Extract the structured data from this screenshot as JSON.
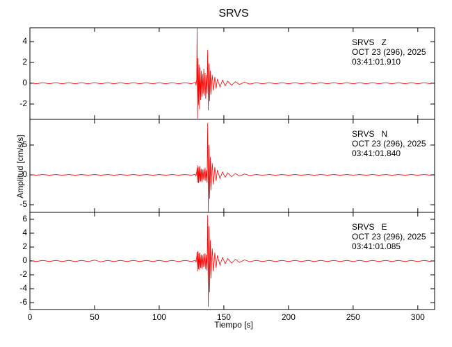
{
  "chart_data": [
    {
      "type": "line",
      "title": "SRVS",
      "annotation": [
        "SRVS   Z",
        "OCT 23 (296), 2025",
        "03:41:01.910"
      ],
      "color": "#ff0000",
      "xlim": [
        0,
        313
      ],
      "ylim": [
        -3.47,
        5.33
      ],
      "yticks": [
        -2,
        0,
        2,
        4
      ],
      "x": [
        0,
        5,
        10,
        15,
        20,
        25,
        30,
        35,
        40,
        45,
        50,
        55,
        60,
        65,
        70,
        75,
        80,
        85,
        90,
        95,
        100,
        105,
        110,
        115,
        120,
        125,
        128,
        128.5,
        129,
        129.3,
        129.6,
        130,
        130.4,
        130.8,
        131.2,
        131.6,
        132,
        132.5,
        133,
        133.5,
        134,
        134.5,
        135,
        135.5,
        136,
        136.5,
        137,
        137.5,
        138,
        138.5,
        139,
        139.5,
        140,
        141,
        142,
        143,
        144,
        145,
        147,
        149,
        151,
        153,
        156,
        159,
        162,
        166,
        170,
        175,
        180,
        185,
        190,
        195,
        200,
        205,
        210,
        215,
        220,
        225,
        230,
        235,
        240,
        245,
        250,
        255,
        260,
        265,
        270,
        275,
        280,
        285,
        290,
        295,
        300,
        305,
        310
      ],
      "values": [
        0.05,
        -0.05,
        0.05,
        -0.05,
        0.05,
        -0.05,
        0.05,
        -0.05,
        0.05,
        -0.05,
        0.05,
        -0.05,
        0.05,
        -0.05,
        0.05,
        -0.05,
        0.05,
        -0.05,
        0.05,
        -0.05,
        0.05,
        -0.05,
        0.05,
        -0.05,
        0.05,
        -0.05,
        0.1,
        -0.2,
        0.4,
        5.3,
        -3.4,
        2.4,
        -2.1,
        1.8,
        -2.5,
        1.5,
        -1.6,
        1.2,
        -1.3,
        0.9,
        -1.0,
        1.4,
        -1.2,
        1.0,
        -1.5,
        0.8,
        -1.0,
        3.2,
        -2.6,
        1.9,
        -1.7,
        1.2,
        -1.1,
        0.8,
        -0.7,
        0.6,
        -0.5,
        0.4,
        -0.35,
        0.3,
        -0.25,
        0.2,
        -0.18,
        0.15,
        -0.12,
        0.1,
        -0.08,
        0.05,
        -0.05,
        0.05,
        -0.05,
        0.05,
        -0.05,
        0.05,
        -0.05,
        0.05,
        -0.05,
        0.05,
        -0.05,
        0.05,
        -0.05,
        0.05,
        -0.05,
        0.05,
        -0.05,
        0.05,
        -0.05,
        0.05,
        -0.05,
        0.05,
        -0.05,
        0.05,
        -0.05,
        0.05,
        -0.05
      ]
    },
    {
      "type": "line",
      "y_label": "Amplitud [cm/s/s]",
      "annotation": [
        "SRVS   N",
        "OCT 23 (296), 2025",
        "03:41:01.840"
      ],
      "color": "#ff0000",
      "xlim": [
        0,
        313
      ],
      "ylim": [
        -6.28,
        9.3
      ],
      "yticks": [
        -5,
        0,
        5
      ],
      "x": [
        0,
        5,
        10,
        15,
        20,
        25,
        30,
        35,
        40,
        45,
        50,
        55,
        60,
        65,
        70,
        75,
        80,
        85,
        90,
        95,
        100,
        105,
        110,
        115,
        120,
        125,
        128,
        128.5,
        129,
        129.3,
        129.6,
        130,
        130.4,
        130.8,
        131.2,
        131.6,
        132,
        132.5,
        133,
        133.5,
        134,
        134.5,
        135,
        135.5,
        136,
        136.5,
        137,
        137.5,
        138,
        138.5,
        139,
        139.5,
        140,
        141,
        142,
        143,
        144,
        145,
        147,
        149,
        151,
        153,
        156,
        159,
        162,
        166,
        170,
        175,
        180,
        185,
        190,
        195,
        200,
        205,
        210,
        215,
        220,
        225,
        230,
        235,
        240,
        245,
        250,
        255,
        260,
        265,
        270,
        275,
        280,
        285,
        290,
        295,
        300,
        305,
        310
      ],
      "values": [
        0.05,
        -0.05,
        0.05,
        -0.05,
        0.05,
        -0.05,
        0.05,
        -0.05,
        0.05,
        -0.05,
        0.05,
        -0.05,
        0.05,
        -0.05,
        0.05,
        -0.05,
        0.05,
        -0.05,
        0.05,
        -0.05,
        0.05,
        -0.05,
        0.05,
        -0.05,
        0.05,
        -0.05,
        0.1,
        -0.2,
        0.5,
        1.2,
        -1.3,
        1.6,
        -1.4,
        1.3,
        -1.2,
        1.5,
        -1.1,
        1.0,
        -1.2,
        0.9,
        -0.8,
        1.0,
        -0.9,
        1.2,
        -1.0,
        0.8,
        -1.3,
        8.7,
        -6.2,
        5.0,
        -4.0,
        3.0,
        -2.6,
        2.0,
        -1.6,
        1.3,
        -1.0,
        0.8,
        -0.6,
        0.5,
        -0.4,
        0.35,
        -0.3,
        0.25,
        -0.2,
        0.15,
        -0.1,
        0.05,
        -0.05,
        0.05,
        -0.05,
        0.05,
        -0.05,
        0.05,
        -0.05,
        0.05,
        -0.05,
        0.05,
        -0.05,
        0.05,
        -0.05,
        0.05,
        -0.05,
        0.05,
        -0.05,
        0.05,
        -0.05,
        0.05,
        -0.05,
        0.05,
        -0.05,
        0.05,
        -0.05,
        0.05,
        -0.05
      ]
    },
    {
      "type": "line",
      "x_label": "Tiempo [s]",
      "annotation": [
        "SRVS   E",
        "OCT 23 (296), 2025",
        "03:41:01.085"
      ],
      "color": "#ff0000",
      "xlim": [
        0,
        313
      ],
      "ylim": [
        -7,
        7
      ],
      "yticks": [
        -6,
        -4,
        -2,
        0,
        2,
        4,
        6
      ],
      "xticks": [
        0,
        50,
        100,
        150,
        200,
        250,
        300
      ],
      "x": [
        0,
        5,
        10,
        15,
        20,
        25,
        30,
        35,
        40,
        45,
        50,
        55,
        60,
        65,
        70,
        75,
        80,
        85,
        90,
        95,
        100,
        105,
        110,
        115,
        120,
        125,
        128,
        128.5,
        129,
        129.3,
        129.6,
        130,
        130.4,
        130.8,
        131.2,
        131.6,
        132,
        132.5,
        133,
        133.5,
        134,
        134.5,
        135,
        135.5,
        136,
        136.5,
        137,
        137.5,
        138,
        138.5,
        139,
        139.5,
        140,
        141,
        142,
        143,
        144,
        145,
        147,
        149,
        151,
        153,
        156,
        159,
        162,
        166,
        170,
        175,
        180,
        185,
        190,
        195,
        200,
        205,
        210,
        215,
        220,
        225,
        230,
        235,
        240,
        245,
        250,
        255,
        260,
        265,
        270,
        275,
        280,
        285,
        290,
        295,
        300,
        305,
        310
      ],
      "values": [
        0.08,
        -0.08,
        0.08,
        -0.08,
        0.08,
        -0.08,
        0.08,
        -0.08,
        0.08,
        -0.08,
        0.12,
        -0.12,
        0.08,
        -0.08,
        0.08,
        -0.08,
        0.08,
        -0.08,
        0.08,
        -0.08,
        0.08,
        -0.08,
        0.08,
        -0.08,
        0.08,
        -0.08,
        0.1,
        -0.2,
        0.6,
        1.3,
        -1.5,
        1.4,
        -1.2,
        1.1,
        -1.3,
        1.2,
        -1.0,
        0.9,
        -1.1,
        0.8,
        -0.9,
        1.0,
        -0.8,
        1.1,
        -1.2,
        0.9,
        -1.4,
        6.6,
        -6.6,
        5.0,
        -4.5,
        3.0,
        -2.5,
        1.8,
        -1.5,
        1.2,
        -1.0,
        0.8,
        -0.6,
        0.5,
        -0.4,
        0.35,
        -0.3,
        0.25,
        -0.2,
        0.15,
        -0.1,
        0.08,
        -0.08,
        0.08,
        -0.08,
        0.08,
        -0.08,
        0.08,
        -0.08,
        0.08,
        -0.08,
        0.08,
        -0.08,
        0.08,
        -0.08,
        0.08,
        -0.08,
        0.08,
        -0.08,
        0.08,
        -0.08,
        0.08,
        -0.08,
        0.08,
        -0.08,
        0.08,
        -0.08,
        0.08,
        -0.08
      ]
    }
  ]
}
